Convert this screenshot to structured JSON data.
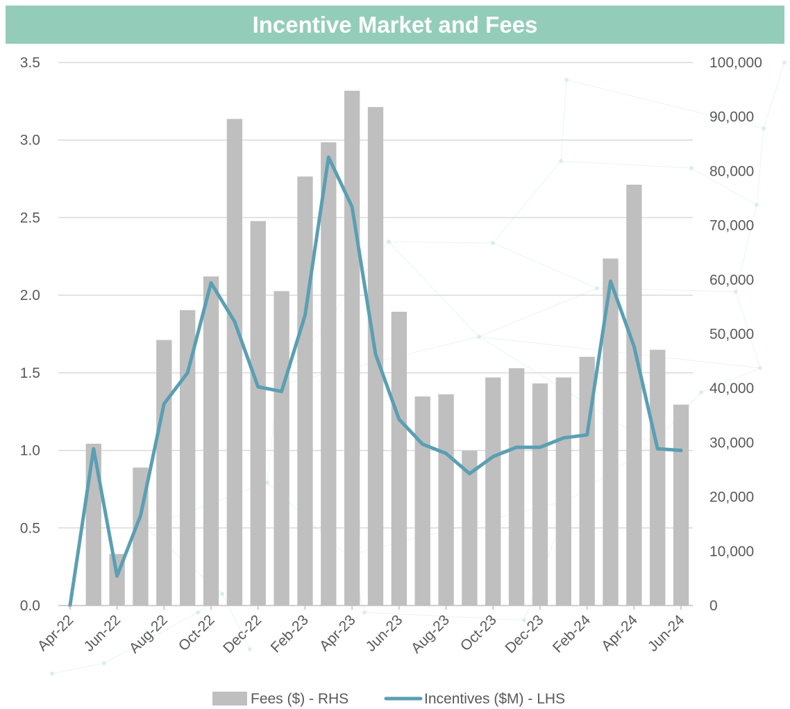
{
  "chart_data": {
    "type": "bar+line",
    "title": "Incentive Market and Fees",
    "x": [
      "Apr-22",
      "May-22",
      "Jun-22",
      "Jul-22",
      "Aug-22",
      "Sep-22",
      "Oct-22",
      "Nov-22",
      "Dec-22",
      "Jan-23",
      "Feb-23",
      "Mar-23",
      "Apr-23",
      "May-23",
      "Jun-23",
      "Jul-23",
      "Aug-23",
      "Sep-23",
      "Oct-23",
      "Nov-23",
      "Dec-23",
      "Jan-24",
      "Feb-24",
      "Mar-24",
      "Apr-24",
      "May-24",
      "Jun-24"
    ],
    "x_tick_labels": [
      "Apr-22",
      "Jun-22",
      "Aug-22",
      "Oct-22",
      "Dec-22",
      "Feb-23",
      "Apr-23",
      "Jun-23",
      "Aug-23",
      "Oct-23",
      "Dec-23",
      "Feb-24",
      "Apr-24",
      "Jun-24"
    ],
    "series": [
      {
        "name": "Fees ($) - RHS",
        "type": "bar",
        "axis": "right",
        "color": "#bfbfbf",
        "values": [
          0,
          29800,
          9500,
          25400,
          48900,
          54400,
          60600,
          89600,
          70800,
          57900,
          79000,
          85300,
          94800,
          91800,
          54100,
          38500,
          38900,
          28500,
          42000,
          43700,
          40900,
          42000,
          45800,
          63900,
          77500,
          47100,
          37000
        ]
      },
      {
        "name": "Incentives ($M) - LHS",
        "type": "line",
        "axis": "left",
        "color": "#5a9fb3",
        "values": [
          0.0,
          1.01,
          0.19,
          0.58,
          1.3,
          1.5,
          2.08,
          1.83,
          1.41,
          1.38,
          1.87,
          2.89,
          2.57,
          1.62,
          1.2,
          1.04,
          0.98,
          0.85,
          0.96,
          1.02,
          1.02,
          1.08,
          1.1,
          2.09,
          1.67,
          1.01,
          1.0
        ]
      }
    ],
    "y_left": {
      "lim": [
        0,
        3.5
      ],
      "ticks": [
        "0.0",
        "0.5",
        "1.0",
        "1.5",
        "2.0",
        "2.5",
        "3.0",
        "3.5"
      ]
    },
    "y_right": {
      "lim": [
        0,
        100000
      ],
      "ticks": [
        "0",
        "10,000",
        "20,000",
        "30,000",
        "40,000",
        "50,000",
        "60,000",
        "70,000",
        "80,000",
        "90,000",
        "100,000"
      ]
    },
    "grid": true,
    "legend": "bottom-center"
  }
}
